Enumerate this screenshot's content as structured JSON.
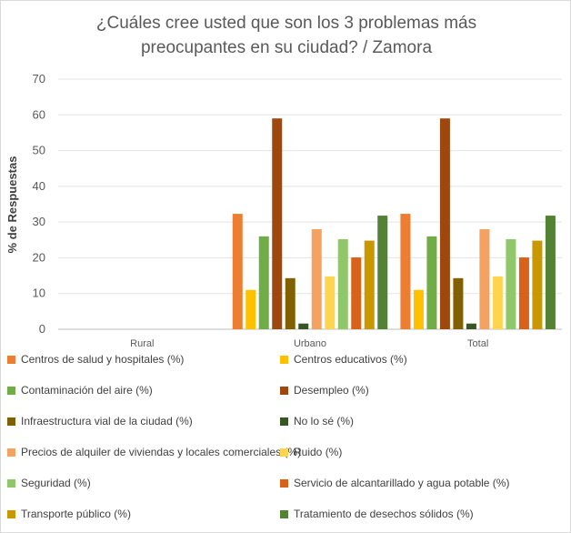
{
  "chart_data": {
    "type": "bar",
    "title": [
      "¿Cuáles cree usted que son los 3 problemas más",
      "preocupantes en su ciudad? / Zamora"
    ],
    "ylabel": "% de Respuestas",
    "xlabel": "",
    "ylim": [
      0,
      70
    ],
    "yticks": [
      "0",
      "10",
      "20",
      "30",
      "40",
      "50",
      "60",
      "70"
    ],
    "grid": true,
    "legend_position": "bottom",
    "categories": [
      "Rural",
      "Urbano",
      "Total"
    ],
    "series": [
      {
        "name": "Centros de salud y hospitales (%)",
        "color": "#ED7D31",
        "values": [
          0,
          32.3,
          32.3
        ]
      },
      {
        "name": "Centros educativos (%)",
        "color": "#FFC000",
        "values": [
          0,
          11.0,
          11.0
        ]
      },
      {
        "name": "Contaminación del aire (%)",
        "color": "#70AD47",
        "values": [
          0,
          26.0,
          26.0
        ]
      },
      {
        "name": "Desempleo (%)",
        "color": "#9E480E",
        "values": [
          0,
          59.0,
          59.0
        ]
      },
      {
        "name": "Infraestructura vial de la ciudad (%)",
        "color": "#806000",
        "values": [
          0,
          14.3,
          14.3
        ]
      },
      {
        "name": "No lo sé (%)",
        "color": "#375623",
        "values": [
          0,
          1.6,
          1.6
        ]
      },
      {
        "name": "Precios de alquiler de viviendas y locales comerciales (%)",
        "color": "#F4A261",
        "values": [
          0,
          28.0,
          28.0
        ]
      },
      {
        "name": "Ruido (%)",
        "color": "#FFD54F",
        "values": [
          0,
          14.8,
          14.8
        ]
      },
      {
        "name": "Seguridad (%)",
        "color": "#8FC76A",
        "values": [
          0,
          25.2,
          25.2
        ]
      },
      {
        "name": "Servicio de alcantarillado y agua potable (%)",
        "color": "#D9621A",
        "values": [
          0,
          20.1,
          20.1
        ]
      },
      {
        "name": "Transporte público (%)",
        "color": "#C99700",
        "values": [
          0,
          24.8,
          24.8
        ]
      },
      {
        "name": "Tratamiento de desechos sólidos (%)",
        "color": "#548235",
        "values": [
          0,
          31.8,
          31.8
        ]
      }
    ]
  }
}
